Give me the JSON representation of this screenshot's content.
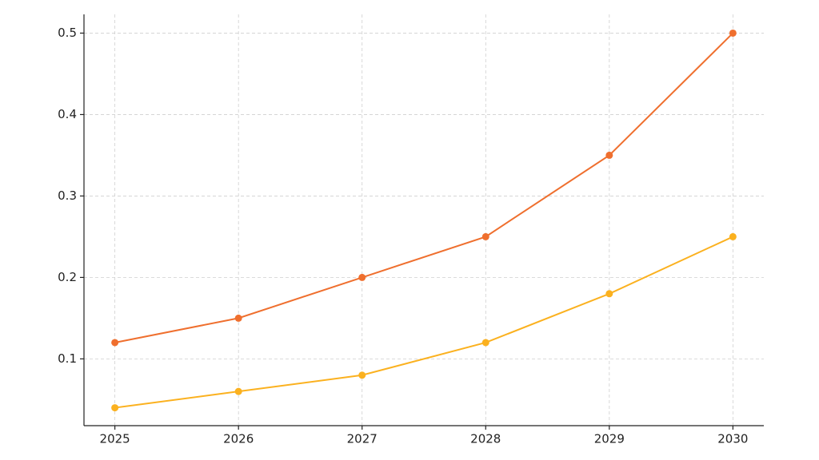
{
  "chart_data": {
    "type": "line",
    "x": [
      2025,
      2026,
      2027,
      2028,
      2029,
      2030
    ],
    "series": [
      {
        "color": "#ef6f2e",
        "values": [
          0.12,
          0.15,
          0.2,
          0.25,
          0.35,
          0.5
        ]
      },
      {
        "color": "#fbb11f",
        "values": [
          0.04,
          0.06,
          0.08,
          0.12,
          0.18,
          0.25
        ]
      }
    ],
    "xlim": [
      2024.75,
      2030.25
    ],
    "xticks": [
      2025,
      2026,
      2027,
      2028,
      2029,
      2030
    ],
    "ylim": [
      0.018,
      0.523
    ],
    "yticks": [
      0.1,
      0.2,
      0.3,
      0.4,
      0.5
    ],
    "grid": true
  }
}
